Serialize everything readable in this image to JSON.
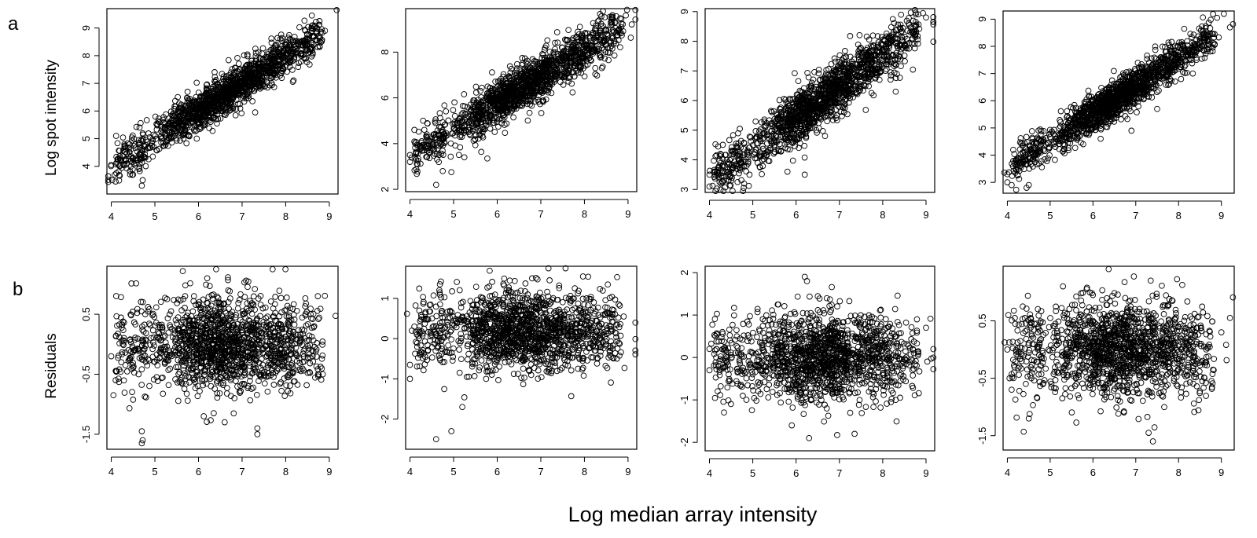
{
  "figure": {
    "panel_labels": [
      "a",
      "b"
    ],
    "row_a_ylabel": "Log spot intensity",
    "row_b_ylabel": "Residuals",
    "xlabel": "Log median array intensity"
  },
  "chart_data": [
    {
      "type": "scatter",
      "row": "a",
      "col": 1,
      "title": "",
      "xlabel": "",
      "ylabel": "Log spot intensity",
      "xlim": [
        3.9,
        9.2
      ],
      "ylim": [
        3.0,
        9.7
      ],
      "xticks": [
        4,
        5,
        6,
        7,
        8,
        9
      ],
      "yticks": [
        4,
        5,
        6,
        7,
        8,
        9
      ],
      "ytick_labels": [
        "4",
        "5",
        "6",
        "7",
        "8",
        "9"
      ],
      "trend": {
        "intercept": 0.0,
        "slope": 1.0,
        "noise": 0.35
      },
      "points": [
        [
          4.0,
          4.05
        ],
        [
          4.02,
          3.5
        ],
        [
          4.08,
          3.7
        ],
        [
          4.1,
          3.45
        ],
        [
          4.3,
          4.8
        ],
        [
          4.32,
          4.65
        ],
        [
          4.5,
          3.7
        ],
        [
          4.7,
          3.3
        ],
        [
          4.72,
          3.5
        ],
        [
          8.6,
          9.45
        ],
        [
          8.9,
          8.9
        ],
        [
          7.3,
          5.95
        ],
        [
          4.3,
          4.7
        ],
        [
          8.7,
          8.8
        ]
      ]
    },
    {
      "type": "scatter",
      "row": "a",
      "col": 2,
      "title": "",
      "xlabel": "",
      "ylabel": "",
      "xlim": [
        3.9,
        9.2
      ],
      "ylim": [
        1.9,
        9.9
      ],
      "xticks": [
        4,
        5,
        6,
        7,
        8,
        9
      ],
      "yticks": [
        2,
        4,
        6,
        8
      ],
      "ytick_labels": [
        "2",
        "4",
        "6",
        "8"
      ],
      "trend": {
        "intercept": -0.9,
        "slope": 1.12,
        "noise": 0.5
      },
      "points": [
        [
          4.0,
          3.5
        ],
        [
          4.0,
          3.2
        ],
        [
          4.1,
          4.6
        ],
        [
          4.3,
          5.0
        ],
        [
          4.6,
          2.2
        ],
        [
          4.75,
          2.8
        ],
        [
          4.95,
          2.75
        ],
        [
          8.95,
          9.6
        ],
        [
          8.8,
          9.0
        ],
        [
          8.4,
          7.3
        ]
      ]
    },
    {
      "type": "scatter",
      "row": "a",
      "col": 3,
      "title": "",
      "xlabel": "",
      "ylabel": "",
      "xlim": [
        3.9,
        9.2
      ],
      "ylim": [
        2.9,
        9.1
      ],
      "xticks": [
        4,
        5,
        6,
        7,
        8,
        9
      ],
      "yticks": [
        3,
        4,
        5,
        6,
        7,
        8,
        9
      ],
      "ytick_labels": [
        "3",
        "4",
        "5",
        "6",
        "7",
        "8",
        "9"
      ],
      "trend": {
        "intercept": -0.9,
        "slope": 1.05,
        "noise": 0.45
      },
      "points": [
        [
          4.0,
          3.1
        ],
        [
          4.0,
          3.5
        ],
        [
          4.25,
          4.2
        ],
        [
          4.5,
          3.3
        ],
        [
          4.8,
          3.2
        ],
        [
          9.0,
          8.8
        ],
        [
          8.75,
          8.2
        ],
        [
          8.3,
          6.3
        ],
        [
          6.2,
          3.5
        ],
        [
          5.8,
          3.6
        ]
      ]
    },
    {
      "type": "scatter",
      "row": "a",
      "col": 4,
      "title": "",
      "xlabel": "",
      "ylabel": "",
      "xlim": [
        3.9,
        9.3
      ],
      "ylim": [
        2.6,
        9.3
      ],
      "xticks": [
        4,
        5,
        6,
        7,
        8,
        9
      ],
      "yticks": [
        3,
        4,
        5,
        6,
        7,
        8,
        9
      ],
      "ytick_labels": [
        "3",
        "4",
        "5",
        "6",
        "7",
        "8",
        "9"
      ],
      "trend": {
        "intercept": -0.6,
        "slope": 1.02,
        "noise": 0.35
      },
      "points": [
        [
          4.0,
          3.3
        ],
        [
          4.0,
          3.0
        ],
        [
          4.1,
          2.9
        ],
        [
          4.5,
          2.9
        ],
        [
          4.45,
          2.8
        ],
        [
          8.9,
          9.05
        ],
        [
          9.2,
          8.7
        ],
        [
          7.5,
          5.7
        ],
        [
          6.9,
          4.9
        ]
      ]
    },
    {
      "type": "scatter",
      "row": "b",
      "col": 1,
      "title": "",
      "xlabel": "",
      "ylabel": "Residuals",
      "xlim": [
        3.9,
        9.2
      ],
      "ylim": [
        -1.75,
        1.3
      ],
      "xticks": [
        4,
        5,
        6,
        7,
        8,
        9
      ],
      "yticks": [
        -1.5,
        -0.5,
        0.5
      ],
      "ytick_labels": [
        "-1.5",
        "-0.5",
        "0.5"
      ],
      "trend": {
        "intercept": 0.0,
        "slope": 0.0,
        "noise": 0.38
      },
      "points": [
        [
          4.0,
          -0.2
        ],
        [
          4.05,
          -0.85
        ],
        [
          4.1,
          -0.6
        ],
        [
          4.7,
          -1.65
        ],
        [
          4.72,
          -1.6
        ],
        [
          4.7,
          -1.45
        ],
        [
          7.35,
          -1.5
        ],
        [
          7.35,
          -1.4
        ],
        [
          7.7,
          1.25
        ],
        [
          6.6,
          -1.3
        ],
        [
          6.2,
          1.1
        ],
        [
          8.85,
          -0.5
        ]
      ]
    },
    {
      "type": "scatter",
      "row": "b",
      "col": 2,
      "title": "",
      "xlabel": "",
      "ylabel": "",
      "xlim": [
        3.9,
        9.2
      ],
      "ylim": [
        -2.75,
        1.8
      ],
      "xticks": [
        4,
        5,
        6,
        7,
        8,
        9
      ],
      "yticks": [
        -2,
        -1,
        0,
        1
      ],
      "ytick_labels": [
        "-2",
        "-1",
        "0",
        "1"
      ],
      "trend": {
        "intercept": 0.2,
        "slope": 0.0,
        "noise": 0.5
      },
      "points": [
        [
          4.0,
          -0.65
        ],
        [
          4.0,
          -1.0
        ],
        [
          4.1,
          0.3
        ],
        [
          4.6,
          -2.5
        ],
        [
          4.95,
          -2.3
        ],
        [
          6.8,
          1.5
        ],
        [
          7.2,
          1.45
        ],
        [
          8.9,
          0.55
        ],
        [
          5.2,
          -1.7
        ]
      ]
    },
    {
      "type": "scatter",
      "row": "b",
      "col": 3,
      "title": "",
      "xlabel": "",
      "ylabel": "",
      "xlim": [
        3.9,
        9.2
      ],
      "ylim": [
        -2.2,
        2.15
      ],
      "xticks": [
        4,
        5,
        6,
        7,
        8,
        9
      ],
      "yticks": [
        -2,
        -1,
        0,
        1,
        2
      ],
      "ytick_labels": [
        "-2",
        "-1",
        "0",
        "1",
        "2"
      ],
      "trend": {
        "intercept": 0.0,
        "slope": 0.0,
        "noise": 0.5
      },
      "points": [
        [
          4.0,
          0.2
        ],
        [
          4.0,
          -0.3
        ],
        [
          4.3,
          0.6
        ],
        [
          6.2,
          1.9
        ],
        [
          6.25,
          1.8
        ],
        [
          6.3,
          -1.9
        ],
        [
          5.9,
          -1.6
        ],
        [
          7.35,
          -1.8
        ],
        [
          9.0,
          0.7
        ],
        [
          8.3,
          -1.0
        ]
      ]
    },
    {
      "type": "scatter",
      "row": "b",
      "col": 4,
      "title": "",
      "xlabel": "",
      "ylabel": "",
      "xlim": [
        3.9,
        9.3
      ],
      "ylim": [
        -1.75,
        1.45
      ],
      "xticks": [
        4,
        5,
        6,
        7,
        8,
        9
      ],
      "yticks": [
        -1.5,
        -0.5,
        0.5
      ],
      "ytick_labels": [
        "-1.5",
        "-0.5",
        "0.5"
      ],
      "trend": {
        "intercept": 0.0,
        "slope": 0.0,
        "noise": 0.4
      },
      "points": [
        [
          4.0,
          0.0
        ],
        [
          4.05,
          -0.5
        ],
        [
          4.1,
          -0.7
        ],
        [
          4.5,
          -1.2
        ],
        [
          5.3,
          1.1
        ],
        [
          6.0,
          0.95
        ],
        [
          7.35,
          1.2
        ],
        [
          7.4,
          -1.6
        ],
        [
          7.3,
          -1.45
        ],
        [
          9.2,
          0.55
        ],
        [
          9.0,
          0.3
        ]
      ]
    }
  ]
}
